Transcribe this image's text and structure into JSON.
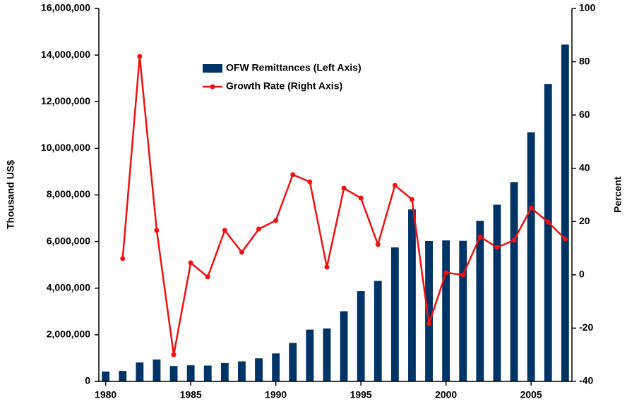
{
  "chart_data": {
    "type": "bar-line",
    "x": [
      1980,
      1981,
      1982,
      1983,
      1984,
      1985,
      1986,
      1987,
      1988,
      1989,
      1990,
      1991,
      1992,
      1993,
      1994,
      1995,
      1996,
      1997,
      1998,
      1999,
      2000,
      2001,
      2002,
      2003,
      2004,
      2005,
      2006,
      2007
    ],
    "xlim": [
      1979.6,
      2007.4
    ],
    "xticks": [
      1980,
      1985,
      1990,
      1995,
      2000,
      2005
    ],
    "y_label": "Thousand US$",
    "y2_label": "Percent",
    "ylim": [
      0,
      16000000
    ],
    "yticks": [
      0,
      {
        "value": 2000000,
        "label": "2,000,000"
      },
      {
        "value": 4000000,
        "label": "4,000,000"
      },
      {
        "value": 6000000,
        "label": "6,000,000"
      },
      {
        "value": 8000000,
        "label": "8,000,000"
      },
      {
        "value": 10000000,
        "label": "10,000,000"
      },
      {
        "value": 12000000,
        "label": "12,000,000"
      },
      {
        "value": 14000000,
        "label": "14,000,000"
      },
      {
        "value": 16000000,
        "label": "16,000,000"
      }
    ],
    "y2lim": [
      -40,
      100
    ],
    "y2ticks": [
      -40,
      -20,
      0,
      20,
      40,
      60,
      80,
      100
    ],
    "series": [
      {
        "name": "OFW Remittances (Left Axis)",
        "type": "bar",
        "color": "#003366",
        "values": [
          420000,
          450000,
          810000,
          940000,
          660000,
          690000,
          680000,
          790000,
          860000,
          990000,
          1200000,
          1650000,
          2220000,
          2270000,
          3010000,
          3870000,
          4310000,
          5750000,
          7380000,
          6020000,
          6050000,
          6030000,
          6890000,
          7580000,
          8550000,
          10690000,
          12760000,
          14450000
        ]
      },
      {
        "name": "Growth Rate (Right Axis)",
        "type": "line",
        "axis": "y2",
        "color": "#ee1111",
        "values": [
          null,
          6.1,
          82,
          16.7,
          -30,
          4.5,
          -0.8,
          16.7,
          8.5,
          17.2,
          20.4,
          37.6,
          34.9,
          2.9,
          32.5,
          28.8,
          11.4,
          33.6,
          28.3,
          -18.3,
          0.8,
          0,
          14.3,
          10.3,
          13,
          25.1,
          19.8,
          13.5
        ]
      }
    ]
  }
}
